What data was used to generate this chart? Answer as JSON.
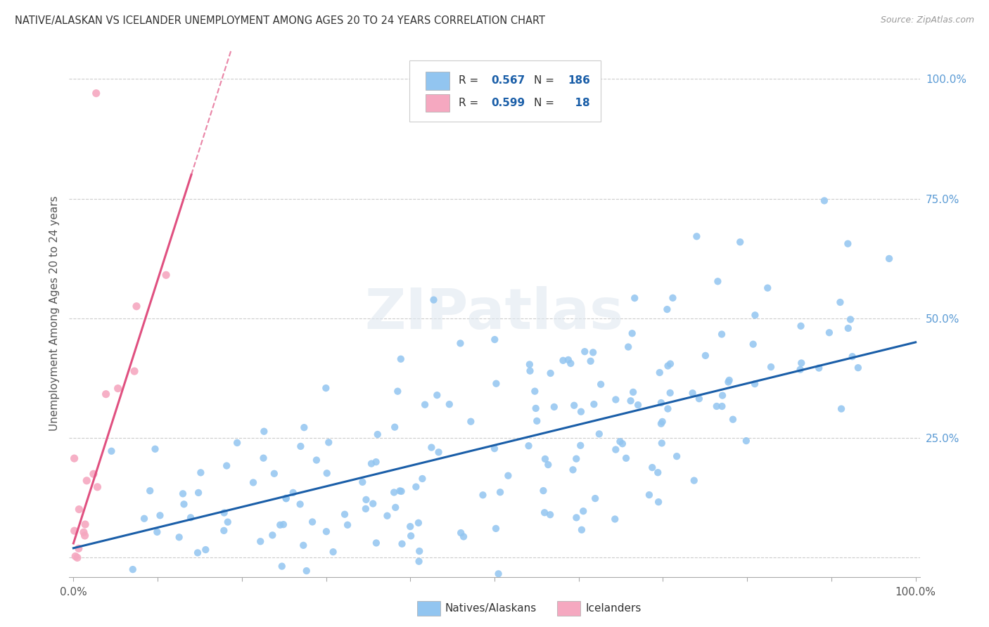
{
  "title": "NATIVE/ALASKAN VS ICELANDER UNEMPLOYMENT AMONG AGES 20 TO 24 YEARS CORRELATION CHART",
  "source": "Source: ZipAtlas.com",
  "ylabel": "Unemployment Among Ages 20 to 24 years",
  "xlim": [
    0.0,
    1.0
  ],
  "ylim": [
    0.0,
    1.0
  ],
  "blue_color": "#92C5F0",
  "blue_line_color": "#1A5EA8",
  "pink_color": "#F5A8C0",
  "pink_line_color": "#E05080",
  "R_blue": 0.567,
  "N_blue": 186,
  "R_pink": 0.599,
  "N_pink": 18,
  "legend_label_blue": "Natives/Alaskans",
  "legend_label_pink": "Icelanders",
  "watermark": "ZIPatlas",
  "background_color": "#FFFFFF",
  "grid_color": "#CCCCCC",
  "title_color": "#333333",
  "right_tick_color": "#5B9BD5",
  "seed": 42,
  "blue_slope": 0.43,
  "blue_intercept": 0.02,
  "blue_noise": 0.13,
  "pink_slope": 5.5,
  "pink_intercept": 0.03,
  "pink_noise": 0.07
}
